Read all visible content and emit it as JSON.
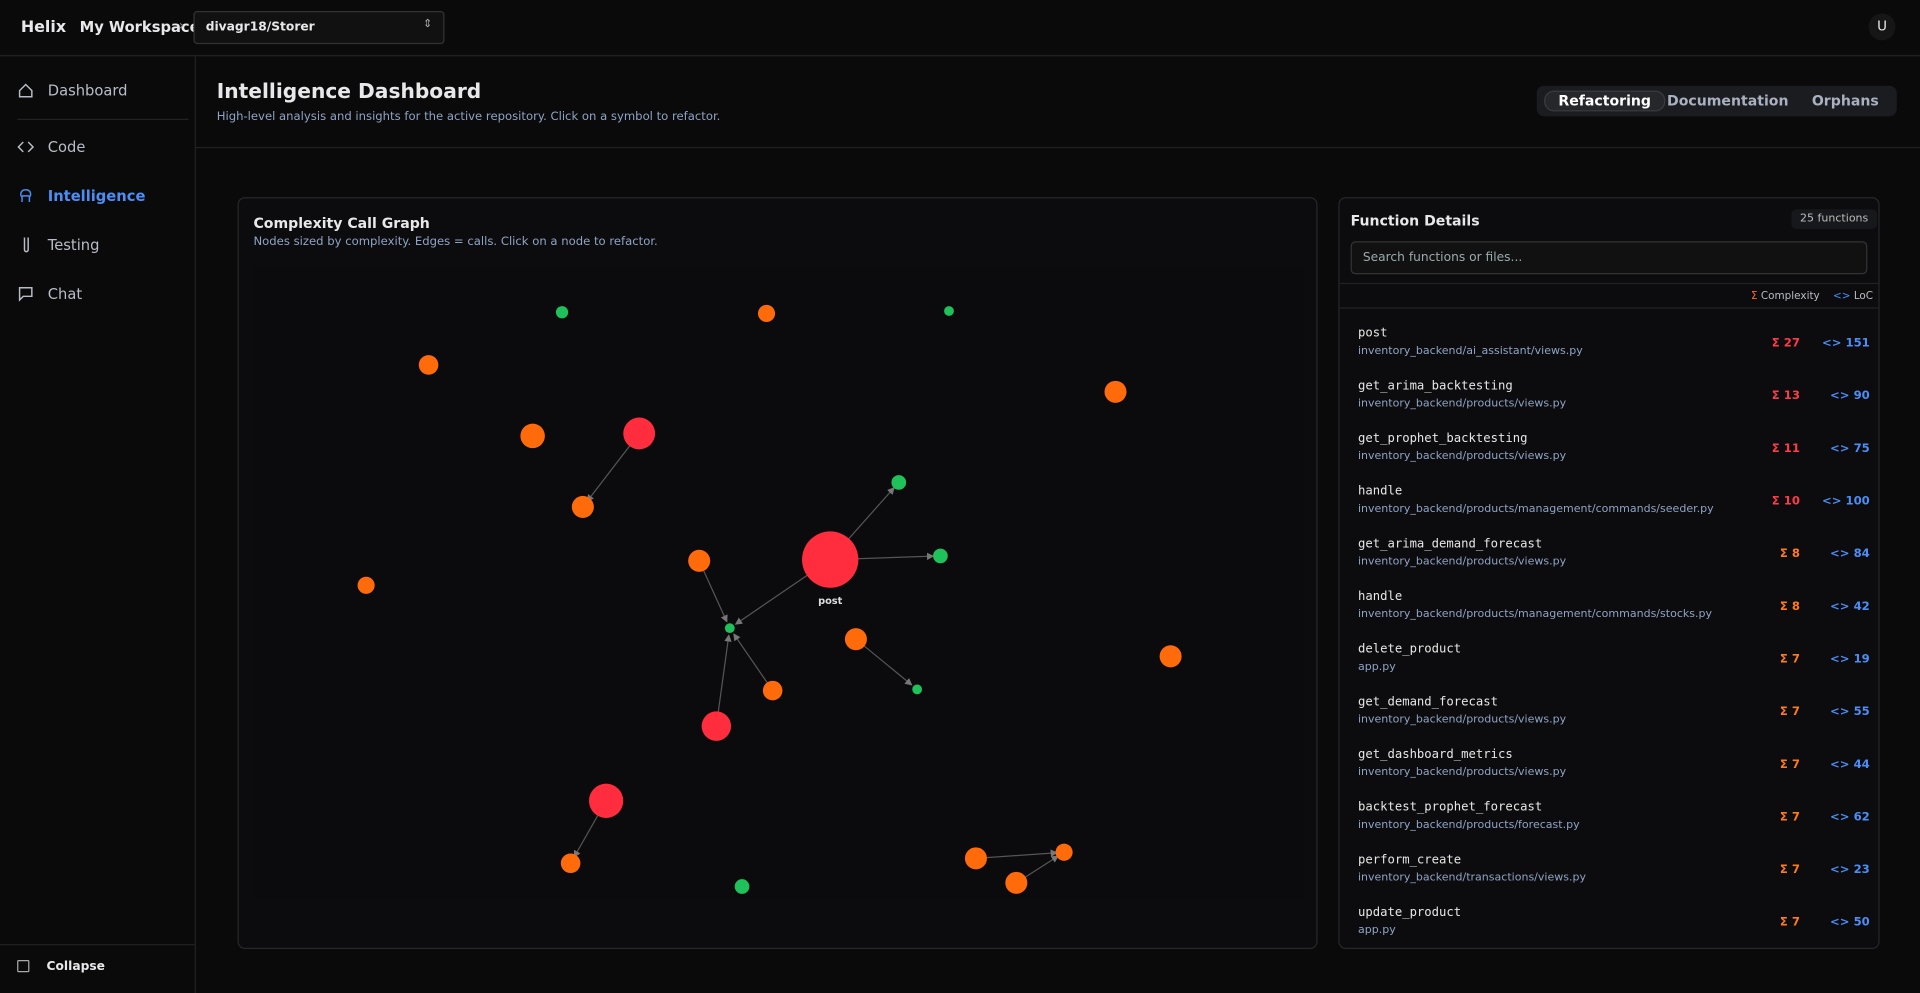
{
  "topbar": {
    "brand": "Helix",
    "workspace": "My Workspace",
    "repo": "divagr18/Storer",
    "avatar": "U"
  },
  "sidebar": {
    "items": [
      "Dashboard",
      "Code",
      "Intelligence",
      "Testing",
      "Chat"
    ],
    "active": "Intelligence",
    "collapse": "Collapse"
  },
  "header": {
    "title": "Intelligence Dashboard",
    "subtitle": "High-level analysis and insights for the active repository. Click on a symbol to refactor.",
    "tabs": [
      "Refactoring",
      "Documentation",
      "Orphans"
    ],
    "active_tab": "Refactoring"
  },
  "graph": {
    "title": "Complexity Call Graph",
    "subtitle": "Nodes sized by complexity. Edges = calls. Click on a node to refactor.",
    "node_label": "post"
  },
  "details": {
    "title": "Function Details",
    "count": "25 functions",
    "search_placeholder": "Search functions or files...",
    "columns": [
      "Complexity",
      "LoC"
    ],
    "rows": [
      {
        "name": "post",
        "file": "inventory_backend/ai_assistant/views.py",
        "complexity": 27,
        "loc": 151
      },
      {
        "name": "get_arima_backtesting",
        "file": "inventory_backend/products/views.py",
        "complexity": 13,
        "loc": 90
      },
      {
        "name": "get_prophet_backtesting",
        "file": "inventory_backend/products/views.py",
        "complexity": 11,
        "loc": 75
      },
      {
        "name": "handle",
        "file": "inventory_backend/products/management/commands/seeder.py",
        "complexity": 10,
        "loc": 100
      },
      {
        "name": "get_arima_demand_forecast",
        "file": "inventory_backend/products/views.py",
        "complexity": 8,
        "loc": 84
      },
      {
        "name": "handle",
        "file": "inventory_backend/products/management/commands/stocks.py",
        "complexity": 8,
        "loc": 42
      },
      {
        "name": "delete_product",
        "file": "app.py",
        "complexity": 7,
        "loc": 19
      },
      {
        "name": "get_demand_forecast",
        "file": "inventory_backend/products/views.py",
        "complexity": 7,
        "loc": 55
      },
      {
        "name": "get_dashboard_metrics",
        "file": "inventory_backend/products/views.py",
        "complexity": 7,
        "loc": 44
      },
      {
        "name": "backtest_prophet_forecast",
        "file": "inventory_backend/products/forecast.py",
        "complexity": 7,
        "loc": 62
      },
      {
        "name": "perform_create",
        "file": "inventory_backend/transactions/views.py",
        "complexity": 7,
        "loc": 23
      },
      {
        "name": "update_product",
        "file": "app.py",
        "complexity": 7,
        "loc": 50
      }
    ]
  }
}
